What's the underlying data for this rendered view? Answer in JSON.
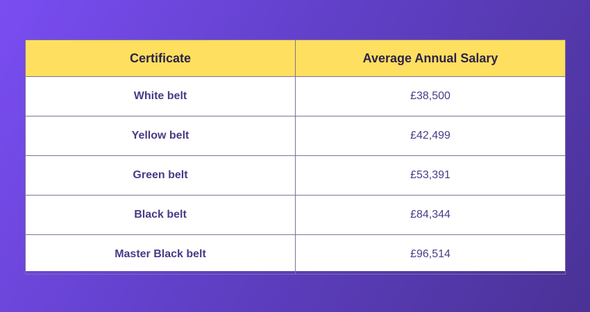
{
  "chart_data": {
    "type": "table",
    "columns": [
      "Certificate",
      "Average Annual Salary"
    ],
    "rows": [
      [
        "White belt",
        "£38,500"
      ],
      [
        "Yellow belt",
        "£42,499"
      ],
      [
        "Green belt",
        "£53,391"
      ],
      [
        "Black belt",
        "£84,344"
      ],
      [
        "Master Black belt",
        "£96,514"
      ]
    ]
  },
  "colors": {
    "header_bg": "#ffdf5f",
    "header_text": "#2d2348",
    "cell_text": "#4b3a86",
    "background_start": "#7a4df2",
    "background_end": "#4a3296"
  }
}
